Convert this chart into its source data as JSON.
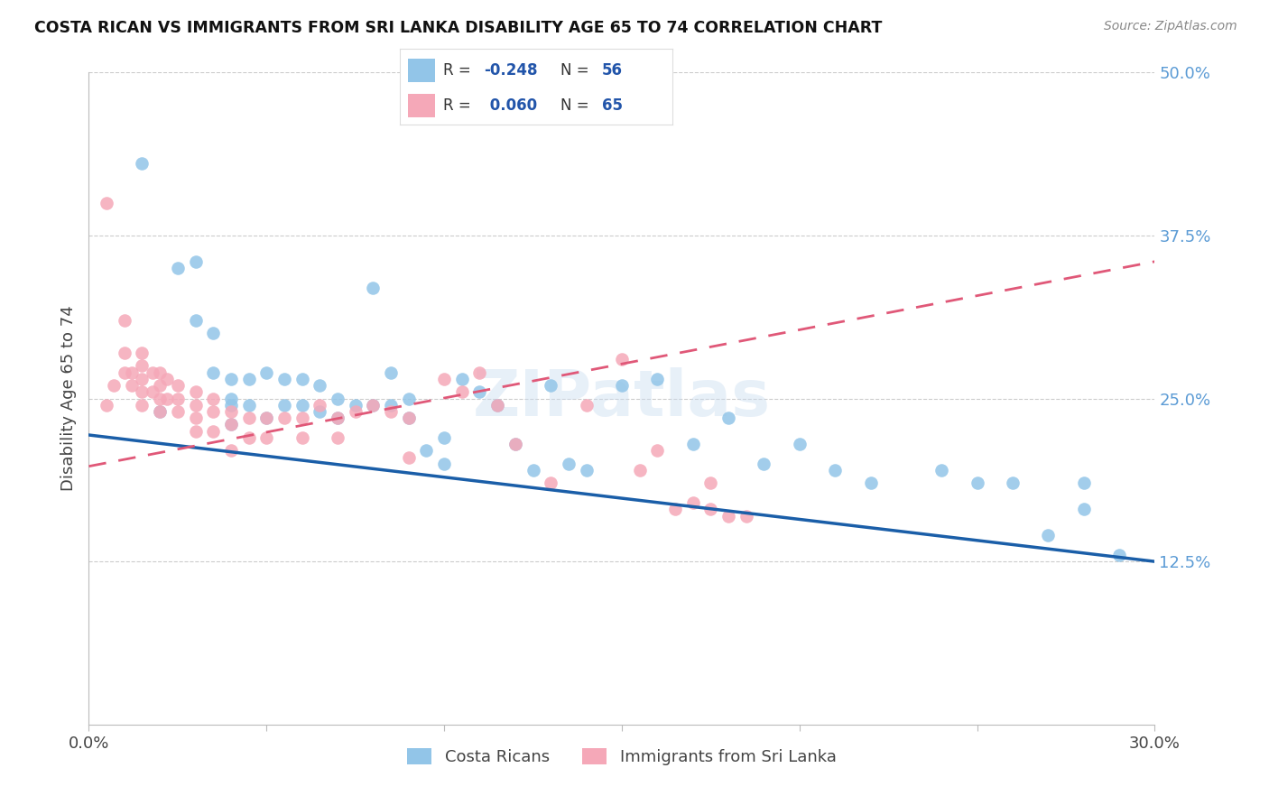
{
  "title": "COSTA RICAN VS IMMIGRANTS FROM SRI LANKA DISABILITY AGE 65 TO 74 CORRELATION CHART",
  "source": "Source: ZipAtlas.com",
  "ylabel": "Disability Age 65 to 74",
  "x_min": 0.0,
  "x_max": 0.3,
  "y_min": 0.0,
  "y_max": 0.5,
  "x_ticks": [
    0.0,
    0.05,
    0.1,
    0.15,
    0.2,
    0.25,
    0.3
  ],
  "x_tick_labels": [
    "0.0%",
    "",
    "",
    "",
    "",
    "",
    "30.0%"
  ],
  "y_ticks_right": [
    0.125,
    0.25,
    0.375,
    0.5
  ],
  "y_tick_labels_right": [
    "12.5%",
    "25.0%",
    "37.5%",
    "50.0%"
  ],
  "color_blue": "#92C5E8",
  "color_blue_line": "#1A5EA8",
  "color_pink": "#F5A8B8",
  "color_pink_line": "#E05878",
  "color_grid": "#CCCCCC",
  "background": "#FFFFFF",
  "watermark": "ZIPatlas",
  "blue_line_x0": 0.0,
  "blue_line_y0": 0.222,
  "blue_line_x1": 0.3,
  "blue_line_y1": 0.125,
  "pink_line_x0": 0.0,
  "pink_line_y0": 0.198,
  "pink_line_x1": 0.3,
  "pink_line_y1": 0.355,
  "blue_scatter_x": [
    0.015,
    0.02,
    0.025,
    0.03,
    0.03,
    0.035,
    0.035,
    0.04,
    0.04,
    0.04,
    0.04,
    0.045,
    0.045,
    0.05,
    0.05,
    0.055,
    0.055,
    0.06,
    0.06,
    0.065,
    0.065,
    0.07,
    0.07,
    0.075,
    0.08,
    0.08,
    0.085,
    0.085,
    0.09,
    0.09,
    0.095,
    0.1,
    0.1,
    0.105,
    0.11,
    0.115,
    0.12,
    0.125,
    0.13,
    0.135,
    0.14,
    0.15,
    0.16,
    0.17,
    0.18,
    0.19,
    0.2,
    0.21,
    0.22,
    0.24,
    0.25,
    0.26,
    0.27,
    0.28,
    0.28,
    0.29
  ],
  "blue_scatter_y": [
    0.43,
    0.24,
    0.35,
    0.355,
    0.31,
    0.3,
    0.27,
    0.265,
    0.25,
    0.245,
    0.23,
    0.265,
    0.245,
    0.27,
    0.235,
    0.265,
    0.245,
    0.265,
    0.245,
    0.26,
    0.24,
    0.25,
    0.235,
    0.245,
    0.335,
    0.245,
    0.27,
    0.245,
    0.25,
    0.235,
    0.21,
    0.22,
    0.2,
    0.265,
    0.255,
    0.245,
    0.215,
    0.195,
    0.26,
    0.2,
    0.195,
    0.26,
    0.265,
    0.215,
    0.235,
    0.2,
    0.215,
    0.195,
    0.185,
    0.195,
    0.185,
    0.185,
    0.145,
    0.185,
    0.165,
    0.13
  ],
  "pink_scatter_x": [
    0.005,
    0.005,
    0.007,
    0.01,
    0.01,
    0.01,
    0.012,
    0.012,
    0.015,
    0.015,
    0.015,
    0.015,
    0.015,
    0.018,
    0.018,
    0.02,
    0.02,
    0.02,
    0.02,
    0.022,
    0.022,
    0.025,
    0.025,
    0.025,
    0.03,
    0.03,
    0.03,
    0.03,
    0.035,
    0.035,
    0.035,
    0.04,
    0.04,
    0.04,
    0.045,
    0.045,
    0.05,
    0.05,
    0.055,
    0.06,
    0.06,
    0.065,
    0.07,
    0.07,
    0.075,
    0.08,
    0.085,
    0.09,
    0.09,
    0.1,
    0.105,
    0.11,
    0.115,
    0.12,
    0.13,
    0.14,
    0.15,
    0.155,
    0.16,
    0.165,
    0.17,
    0.175,
    0.175,
    0.18,
    0.185
  ],
  "pink_scatter_y": [
    0.4,
    0.245,
    0.26,
    0.31,
    0.285,
    0.27,
    0.27,
    0.26,
    0.285,
    0.275,
    0.265,
    0.255,
    0.245,
    0.27,
    0.255,
    0.27,
    0.26,
    0.25,
    0.24,
    0.265,
    0.25,
    0.26,
    0.25,
    0.24,
    0.255,
    0.245,
    0.235,
    0.225,
    0.25,
    0.24,
    0.225,
    0.24,
    0.23,
    0.21,
    0.235,
    0.22,
    0.235,
    0.22,
    0.235,
    0.235,
    0.22,
    0.245,
    0.235,
    0.22,
    0.24,
    0.245,
    0.24,
    0.235,
    0.205,
    0.265,
    0.255,
    0.27,
    0.245,
    0.215,
    0.185,
    0.245,
    0.28,
    0.195,
    0.21,
    0.165,
    0.17,
    0.185,
    0.165,
    0.16,
    0.16
  ]
}
